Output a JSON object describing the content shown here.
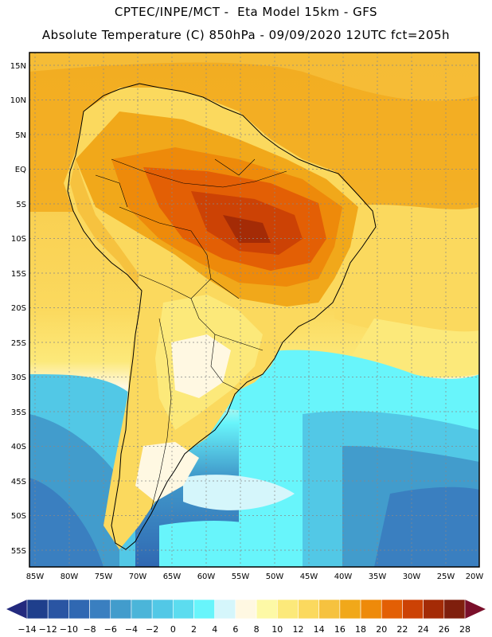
{
  "header": {
    "line1": "CPTEC/INPE/MCT -  Eta Model 15km - GFS",
    "line2": "Absolute Temperature (C) 850hPa - 09/09/2020 12UTC fct=205h"
  },
  "map": {
    "lat_ticks": [
      "15N",
      "10N",
      "5N",
      "EQ",
      "5S",
      "10S",
      "15S",
      "20S",
      "25S",
      "30S",
      "35S",
      "40S",
      "45S",
      "50S",
      "55S"
    ],
    "lon_ticks": [
      "85W",
      "80W",
      "75W",
      "70W",
      "65W",
      "60W",
      "55W",
      "50W",
      "45W",
      "40W",
      "35W",
      "30W",
      "25W",
      "20W"
    ],
    "gridlines": true
  },
  "colorbar": {
    "labels": [
      "-14",
      "-12",
      "-10",
      "-8",
      "-6",
      "-4",
      "-2",
      "0",
      "2",
      "4",
      "6",
      "8",
      "10",
      "12",
      "14",
      "16",
      "18",
      "20",
      "22",
      "24",
      "26",
      "28"
    ],
    "colors": [
      "#1f3f8c",
      "#2a55a3",
      "#3068b2",
      "#3a7fc0",
      "#429ccc",
      "#4bb5d9",
      "#52c8e6",
      "#5cdcef",
      "#68f5fb",
      "#d5f6fb",
      "#fff8e2",
      "#fdf9a6",
      "#fce97a",
      "#fbd95e",
      "#f6c23f",
      "#f1a81a",
      "#ee8a0a",
      "#e35f05",
      "#cc4205",
      "#a42b06",
      "#7f1f0d"
    ],
    "under_color": "#232a7e",
    "over_color": "#7a0f2a"
  }
}
